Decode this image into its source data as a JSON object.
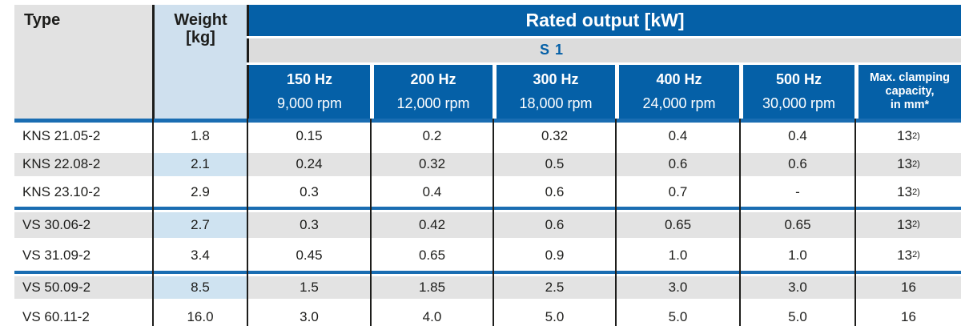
{
  "header": {
    "type_label": "Type",
    "weight_line1": "Weight",
    "weight_line2": "[kg]",
    "rated_output_label": "Rated output [kW]",
    "duty_label": "S 1",
    "columns": [
      {
        "freq": "150 Hz",
        "rpm": "9,000 rpm"
      },
      {
        "freq": "200 Hz",
        "rpm": "12,000 rpm"
      },
      {
        "freq": "300 Hz",
        "rpm": "18,000 rpm"
      },
      {
        "freq": "400 Hz",
        "rpm": "24,000 rpm"
      },
      {
        "freq": "500 Hz",
        "rpm": "30,000 rpm"
      }
    ],
    "clamping_lines": [
      "Max. clamping",
      "capacity,",
      "in mm*"
    ]
  },
  "table": {
    "rows": [
      {
        "type": "KNS 21.05-2",
        "weight": "1.8",
        "outputs": [
          "0.15",
          "0.2",
          "0.32",
          "0.4",
          "0.4"
        ],
        "clamping": "13",
        "clamping_note": "2)",
        "striped": false,
        "group_start": false
      },
      {
        "type": "KNS 22.08-2",
        "weight": "2.1",
        "outputs": [
          "0.24",
          "0.32",
          "0.5",
          "0.6",
          "0.6"
        ],
        "clamping": "13",
        "clamping_note": "2)",
        "striped": true,
        "group_start": false
      },
      {
        "type": "KNS 23.10-2",
        "weight": "2.9",
        "outputs": [
          "0.3",
          "0.4",
          "0.6",
          "0.7",
          "-"
        ],
        "clamping": "13",
        "clamping_note": "2)",
        "striped": false,
        "group_start": false
      },
      {
        "type": "VS 30.06-2",
        "weight": "2.7",
        "outputs": [
          "0.3",
          "0.42",
          "0.6",
          "0.65",
          "0.65"
        ],
        "clamping": "13",
        "clamping_note": "2)",
        "striped": true,
        "group_start": true
      },
      {
        "type": "VS 31.09-2",
        "weight": "3.4",
        "outputs": [
          "0.45",
          "0.65",
          "0.9",
          "1.0",
          "1.0"
        ],
        "clamping": "13",
        "clamping_note": "2)",
        "striped": false,
        "group_start": false
      },
      {
        "type": "VS 50.09-2",
        "weight": "8.5",
        "outputs": [
          "1.5",
          "1.85",
          "2.5",
          "3.0",
          "3.0"
        ],
        "clamping": "16",
        "clamping_note": "",
        "striped": true,
        "group_start": true
      },
      {
        "type": "VS 60.11-2",
        "weight": "16.0",
        "outputs": [
          "3.0",
          "4.0",
          "5.0",
          "5.0",
          "5.0"
        ],
        "clamping": "16",
        "clamping_note": "",
        "striped": false,
        "group_start": false
      }
    ]
  },
  "colors": {
    "header_blue": "#0560a7",
    "divider_blue": "#1a6db2",
    "header_gray": "#e2e2e2",
    "s1_gray": "#dcdcdc",
    "stripe_gray": "#e3e3e3",
    "weight_blue": "#cfe0ee",
    "stripe_blue": "#cfe3f1",
    "border_black": "#1d1d1b",
    "text_black": "#1d1d1b"
  }
}
